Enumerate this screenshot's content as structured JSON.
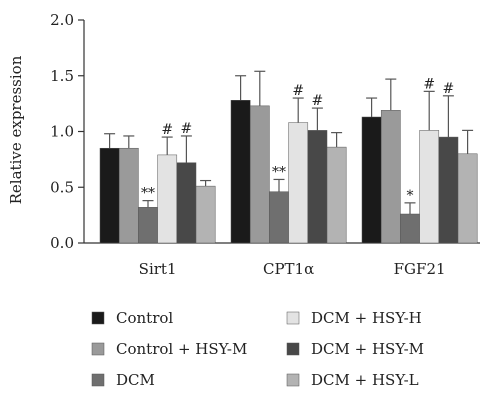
{
  "chart_data": {
    "type": "bar",
    "ylabel": "Relative expression",
    "ylim": [
      0,
      2.0
    ],
    "yticks": [
      "0.0",
      "0.5",
      "1.0",
      "1.5",
      "2.0"
    ],
    "categories": [
      "Sirt1",
      "CPT1α",
      "FGF21"
    ],
    "legend_position": "bottom",
    "series": [
      {
        "name": "Control",
        "color": "#1a1a1a",
        "values": [
          0.85,
          1.28,
          1.13
        ],
        "errors": [
          0.13,
          0.22,
          0.17
        ],
        "marks": [
          "",
          "",
          ""
        ]
      },
      {
        "name": "Control + HSY-M",
        "color": "#9a9a9a",
        "values": [
          0.85,
          1.23,
          1.19
        ],
        "errors": [
          0.11,
          0.31,
          0.28
        ],
        "marks": [
          "",
          "",
          ""
        ]
      },
      {
        "name": "DCM",
        "color": "#6f6f6f",
        "values": [
          0.32,
          0.46,
          0.26
        ],
        "errors": [
          0.06,
          0.11,
          0.1
        ],
        "marks": [
          "**",
          "**",
          "*"
        ]
      },
      {
        "name": "DCM + HSY-H",
        "color": "#e3e3e3",
        "values": [
          0.79,
          1.08,
          1.01
        ],
        "errors": [
          0.16,
          0.22,
          0.35
        ],
        "marks": [
          "#",
          "#",
          "#"
        ]
      },
      {
        "name": "DCM + HSY-M",
        "color": "#484848",
        "values": [
          0.72,
          1.01,
          0.95
        ],
        "errors": [
          0.24,
          0.2,
          0.37
        ],
        "marks": [
          "#",
          "#",
          "#"
        ]
      },
      {
        "name": "DCM + HSY-L",
        "color": "#b3b3b3",
        "values": [
          0.51,
          0.86,
          0.8
        ],
        "errors": [
          0.05,
          0.13,
          0.21
        ],
        "marks": [
          "",
          "",
          ""
        ]
      }
    ]
  }
}
